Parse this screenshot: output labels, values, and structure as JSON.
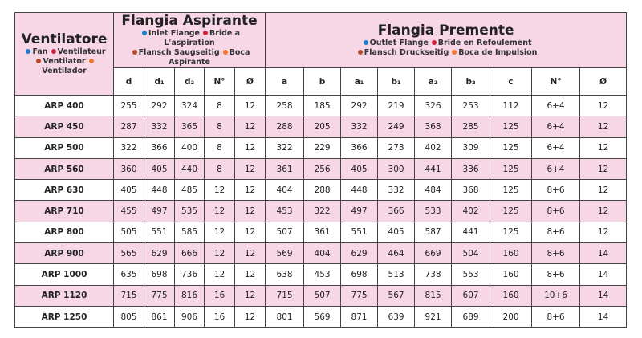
{
  "header": {
    "title": "Ventilatore",
    "legend": [
      "Fan",
      "Ventilateur",
      "Ventilator",
      "Ventilador"
    ]
  },
  "groups": [
    {
      "title": "Flangia Aspirante",
      "legend": [
        "Inlet Flange",
        "Bride a L'aspiration",
        "Flansch Saugseitig",
        "Boca Aspirante"
      ],
      "columns": [
        "d",
        "d₁",
        "d₂",
        "N°",
        "Ø"
      ]
    },
    {
      "title": "Flangia Premente",
      "legend": [
        "Outlet Flange",
        "Bride en Refoulement",
        "Flansch Druckseitig",
        "Boca de Impulsion"
      ],
      "columns": [
        "a",
        "b",
        "a₁",
        "b₁",
        "a₂",
        "b₂",
        "c",
        "N°",
        "Ø"
      ]
    }
  ],
  "rows": [
    [
      "ARP 400",
      255,
      292,
      324,
      8,
      12,
      258,
      185,
      292,
      219,
      326,
      253,
      112,
      "6+4",
      12
    ],
    [
      "ARP 450",
      287,
      332,
      365,
      8,
      12,
      288,
      205,
      332,
      249,
      368,
      285,
      125,
      "6+4",
      12
    ],
    [
      "ARP 500",
      322,
      366,
      400,
      8,
      12,
      322,
      229,
      366,
      273,
      402,
      309,
      125,
      "6+4",
      12
    ],
    [
      "ARP 560",
      360,
      405,
      440,
      8,
      12,
      361,
      256,
      405,
      300,
      441,
      336,
      125,
      "6+4",
      12
    ],
    [
      "ARP 630",
      405,
      448,
      485,
      12,
      12,
      404,
      288,
      448,
      332,
      484,
      368,
      125,
      "8+6",
      12
    ],
    [
      "ARP 710",
      455,
      497,
      535,
      12,
      12,
      453,
      322,
      497,
      366,
      533,
      402,
      125,
      "8+6",
      12
    ],
    [
      "ARP 800",
      505,
      551,
      585,
      12,
      12,
      507,
      361,
      551,
      405,
      587,
      441,
      125,
      "8+6",
      12
    ],
    [
      "ARP 900",
      565,
      629,
      666,
      12,
      12,
      569,
      404,
      629,
      464,
      669,
      504,
      160,
      "8+6",
      14
    ],
    [
      "ARP 1000",
      635,
      698,
      736,
      12,
      12,
      638,
      453,
      698,
      513,
      738,
      553,
      160,
      "8+6",
      14
    ],
    [
      "ARP 1120",
      715,
      775,
      816,
      16,
      12,
      715,
      507,
      775,
      567,
      815,
      607,
      160,
      "10+6",
      14
    ],
    [
      "ARP 1250",
      805,
      861,
      906,
      16,
      12,
      801,
      569,
      871,
      639,
      921,
      689,
      200,
      "8+6",
      14
    ]
  ]
}
